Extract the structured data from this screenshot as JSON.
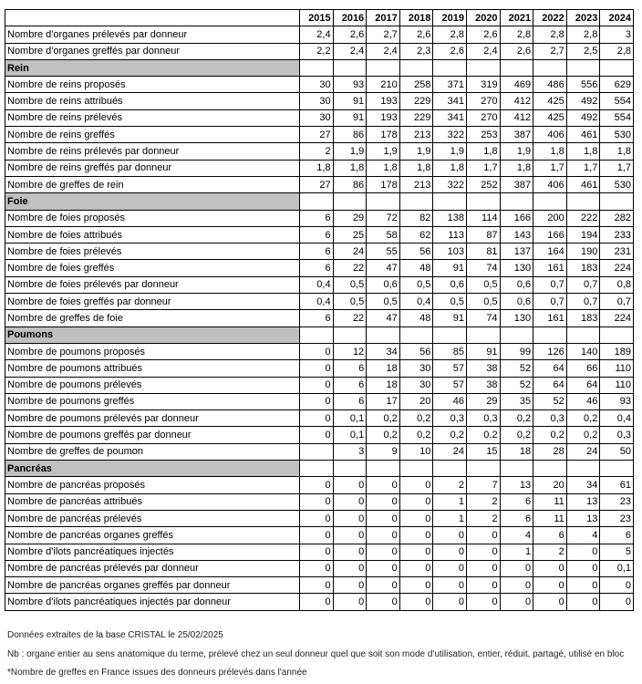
{
  "table": {
    "years": [
      "2015",
      "2016",
      "2017",
      "2018",
      "2019",
      "2020",
      "2021",
      "2022",
      "2023",
      "2024"
    ],
    "rows": [
      {
        "label": "Nombre d'organes prélevés par donneur",
        "values": [
          "2,4",
          "2,6",
          "2,7",
          "2,6",
          "2,8",
          "2,6",
          "2,8",
          "2,8",
          "2,8",
          "3"
        ]
      },
      {
        "label": "Nombre d'organes greffés par donneur",
        "values": [
          "2,2",
          "2,4",
          "2,4",
          "2,3",
          "2,6",
          "2,4",
          "2,6",
          "2,7",
          "2,5",
          "2,8"
        ]
      },
      {
        "section": "Rein"
      },
      {
        "label": "Nombre de reins proposés",
        "values": [
          "30",
          "93",
          "210",
          "258",
          "371",
          "319",
          "469",
          "486",
          "556",
          "629"
        ]
      },
      {
        "label": "Nombre de reins attribués",
        "values": [
          "30",
          "91",
          "193",
          "229",
          "341",
          "270",
          "412",
          "425",
          "492",
          "554"
        ]
      },
      {
        "label": "Nombre de reins prélevés",
        "values": [
          "30",
          "91",
          "193",
          "229",
          "341",
          "270",
          "412",
          "425",
          "492",
          "554"
        ]
      },
      {
        "label": "Nombre de reins greffés",
        "values": [
          "27",
          "86",
          "178",
          "213",
          "322",
          "253",
          "387",
          "406",
          "461",
          "530"
        ]
      },
      {
        "label": "Nombre de reins prélevés par donneur",
        "values": [
          "2",
          "1,9",
          "1,9",
          "1,9",
          "1,9",
          "1,8",
          "1,9",
          "1,8",
          "1,8",
          "1,8"
        ]
      },
      {
        "label": "Nombre de reins greffés par donneur",
        "values": [
          "1,8",
          "1,8",
          "1,8",
          "1,8",
          "1,8",
          "1,7",
          "1,8",
          "1,7",
          "1,7",
          "1,7"
        ]
      },
      {
        "label": "Nombre de greffes de rein",
        "values": [
          "27",
          "86",
          "178",
          "213",
          "322",
          "252",
          "387",
          "406",
          "461",
          "530"
        ]
      },
      {
        "section": "Foie"
      },
      {
        "label": "Nombre de foies proposés",
        "values": [
          "6",
          "29",
          "72",
          "82",
          "138",
          "114",
          "166",
          "200",
          "222",
          "282"
        ]
      },
      {
        "label": "Nombre de foies attribués",
        "values": [
          "6",
          "25",
          "58",
          "62",
          "113",
          "87",
          "143",
          "166",
          "194",
          "233"
        ]
      },
      {
        "label": "Nombre de foies prélevés",
        "values": [
          "6",
          "24",
          "55",
          "56",
          "103",
          "81",
          "137",
          "164",
          "190",
          "231"
        ]
      },
      {
        "label": "Nombre de foies greffés",
        "values": [
          "6",
          "22",
          "47",
          "48",
          "91",
          "74",
          "130",
          "161",
          "183",
          "224"
        ]
      },
      {
        "label": "Nombre de foies prélevés par donneur",
        "values": [
          "0,4",
          "0,5",
          "0,6",
          "0,5",
          "0,6",
          "0,5",
          "0,6",
          "0,7",
          "0,7",
          "0,8"
        ]
      },
      {
        "label": "Nombre de foies greffés par donneur",
        "values": [
          "0,4",
          "0,5",
          "0,5",
          "0,4",
          "0,5",
          "0,5",
          "0,6",
          "0,7",
          "0,7",
          "0,7"
        ]
      },
      {
        "label": "Nombre de greffes de foie",
        "values": [
          "6",
          "22",
          "47",
          "48",
          "91",
          "74",
          "130",
          "161",
          "183",
          "224"
        ]
      },
      {
        "section": "Poumons"
      },
      {
        "label": "Nombre de poumons proposés",
        "values": [
          "0",
          "12",
          "34",
          "56",
          "85",
          "91",
          "99",
          "126",
          "140",
          "189"
        ]
      },
      {
        "label": "Nombre de poumons attribués",
        "values": [
          "0",
          "6",
          "18",
          "30",
          "57",
          "38",
          "52",
          "64",
          "66",
          "110"
        ]
      },
      {
        "label": "Nombre de poumons prélevés",
        "values": [
          "0",
          "6",
          "18",
          "30",
          "57",
          "38",
          "52",
          "64",
          "64",
          "110"
        ]
      },
      {
        "label": "Nombre de poumons greffés",
        "values": [
          "0",
          "6",
          "17",
          "20",
          "46",
          "29",
          "35",
          "52",
          "46",
          "93"
        ]
      },
      {
        "label": "Nombre de poumons prélevés par donneur",
        "values": [
          "0",
          "0,1",
          "0,2",
          "0,2",
          "0,3",
          "0,3",
          "0,2",
          "0,3",
          "0,2",
          "0,4"
        ]
      },
      {
        "label": "Nombre de poumons greffés par donneur",
        "values": [
          "0",
          "0,1",
          "0,2",
          "0,2",
          "0,2",
          "0,2",
          "0,2",
          "0,2",
          "0,2",
          "0,3"
        ]
      },
      {
        "label": "Nombre de greffes de poumon",
        "values": [
          null,
          "3",
          "9",
          "10",
          "24",
          "15",
          "18",
          "28",
          "24",
          "50"
        ]
      },
      {
        "section": "Pancréas"
      },
      {
        "label": "Nombre de pancréas proposés",
        "values": [
          "0",
          "0",
          "0",
          "0",
          "2",
          "7",
          "13",
          "20",
          "34",
          "61"
        ]
      },
      {
        "label": "Nombre de pancréas attribués",
        "values": [
          "0",
          "0",
          "0",
          "0",
          "1",
          "2",
          "6",
          "11",
          "13",
          "23"
        ]
      },
      {
        "label": "Nombre de pancréas prélevés",
        "values": [
          "0",
          "0",
          "0",
          "0",
          "1",
          "2",
          "6",
          "11",
          "13",
          "23"
        ]
      },
      {
        "label": "Nombre de pancréas organes greffés",
        "values": [
          "0",
          "0",
          "0",
          "0",
          "0",
          "0",
          "4",
          "6",
          "4",
          "6"
        ]
      },
      {
        "label": "Nombre d'ilots pancréatiques injectés",
        "values": [
          "0",
          "0",
          "0",
          "0",
          "0",
          "0",
          "1",
          "2",
          "0",
          "5"
        ]
      },
      {
        "label": "Nombre de pancréas prélevés par donneur",
        "values": [
          "0",
          "0",
          "0",
          "0",
          "0",
          "0",
          "0",
          "0",
          "0",
          "0,1"
        ]
      },
      {
        "label": "Nombre de pancréas organes greffés par donneur",
        "values": [
          "0",
          "0",
          "0",
          "0",
          "0",
          "0",
          "0",
          "0",
          "0",
          "0"
        ]
      },
      {
        "label": "Nombre d'ilots pancréatiques injectés par donneur",
        "values": [
          "0",
          "0",
          "0",
          "0",
          "0",
          "0",
          "0",
          "0",
          "0",
          "0"
        ]
      }
    ]
  },
  "notes": [
    "Données extraites de la base CRISTAL le 25/02/2025",
    "Nb : organe entier au sens anatomique du terme, prélevé chez un seul donneur quel que soit son mode d'utilisation, entier, réduit, partagé, utilisé en bloc",
    "*Nombre de greffes en France issues des donneurs prélevés dans l'année"
  ]
}
